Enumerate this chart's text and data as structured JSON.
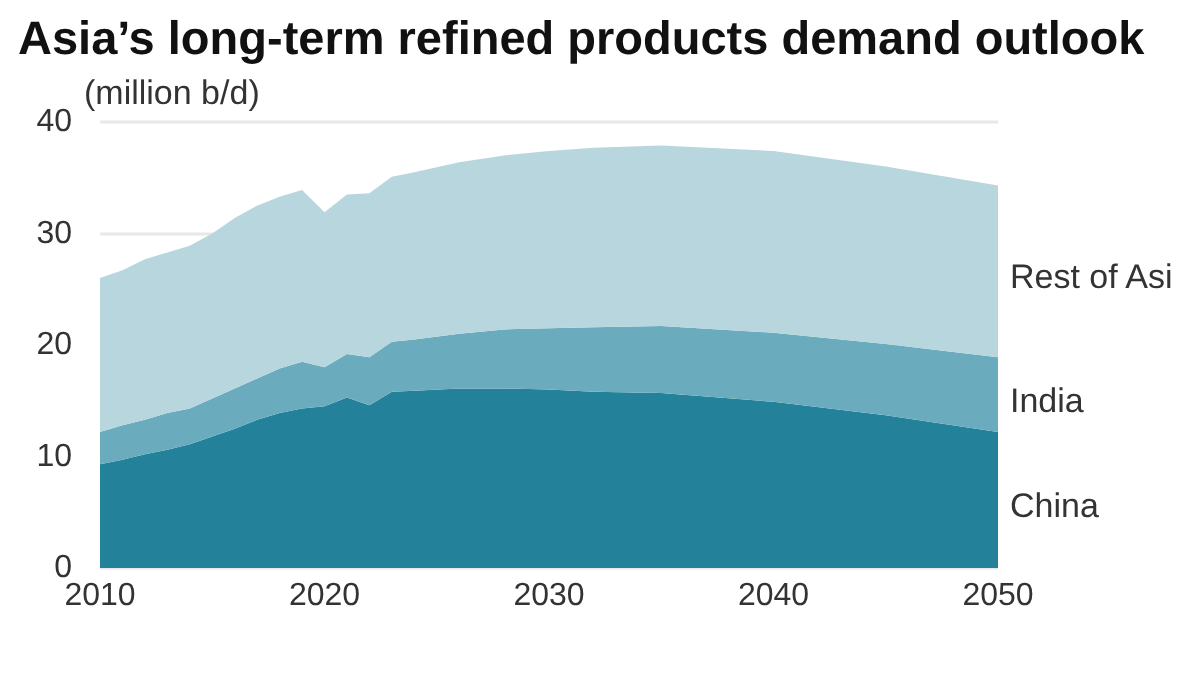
{
  "chart_data": {
    "type": "area",
    "title": "Asia’s long-term refined products demand outlook",
    "ylabel": "(million b/d)",
    "x": [
      2010,
      2011,
      2012,
      2013,
      2014,
      2015,
      2016,
      2017,
      2018,
      2019,
      2020,
      2021,
      2022,
      2023,
      2024,
      2026,
      2028,
      2030,
      2032,
      2035,
      2040,
      2045,
      2050
    ],
    "stacked": true,
    "series": [
      {
        "name": "China",
        "color": "#23829a",
        "values": [
          9.3,
          9.7,
          10.2,
          10.6,
          11.1,
          11.8,
          12.5,
          13.3,
          13.9,
          14.3,
          14.5,
          15.3,
          14.6,
          15.8,
          15.9,
          16.1,
          16.1,
          16.0,
          15.8,
          15.7,
          14.9,
          13.7,
          12.2
        ]
      },
      {
        "name": "India",
        "color": "#6aabbd",
        "values": [
          2.9,
          3.1,
          3.1,
          3.3,
          3.2,
          3.4,
          3.6,
          3.7,
          4.0,
          4.2,
          3.5,
          3.9,
          4.3,
          4.5,
          4.6,
          4.9,
          5.3,
          5.5,
          5.8,
          6.0,
          6.2,
          6.4,
          6.7
        ]
      },
      {
        "name": "Rest of Asi",
        "color": "#b7d6de",
        "values": [
          13.8,
          13.9,
          14.4,
          14.4,
          14.6,
          14.8,
          15.3,
          15.5,
          15.4,
          15.4,
          13.9,
          14.3,
          14.7,
          14.8,
          15.0,
          15.4,
          15.6,
          15.9,
          16.1,
          16.2,
          16.3,
          15.9,
          15.4
        ]
      }
    ],
    "xlim": [
      2010,
      2050
    ],
    "xticks": [
      2010,
      2020,
      2030,
      2040,
      2050
    ],
    "ylim": [
      0,
      40
    ],
    "yticks": [
      0,
      10,
      20,
      30,
      40
    ],
    "grid": "y"
  }
}
